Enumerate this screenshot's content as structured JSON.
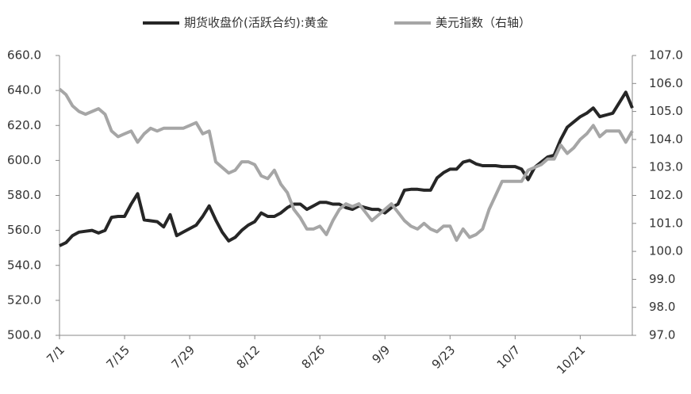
{
  "chart_data": {
    "type": "line",
    "categories": [
      "7/1",
      null,
      null,
      null,
      null,
      null,
      null,
      null,
      null,
      null,
      "7/15",
      null,
      null,
      null,
      null,
      null,
      null,
      null,
      null,
      null,
      "7/29",
      null,
      null,
      null,
      null,
      null,
      null,
      null,
      null,
      null,
      "8/12",
      null,
      null,
      null,
      null,
      null,
      null,
      null,
      null,
      null,
      "8/26",
      null,
      null,
      null,
      null,
      null,
      null,
      null,
      null,
      null,
      "9/9",
      null,
      null,
      null,
      null,
      null,
      null,
      null,
      null,
      null,
      "9/23",
      null,
      null,
      null,
      null,
      null,
      null,
      null,
      null,
      null,
      "10/7",
      null,
      null,
      null,
      null,
      null,
      null,
      null,
      null,
      null,
      "10/21",
      null,
      null,
      null,
      null,
      null,
      null,
      null,
      null
    ],
    "series": [
      {
        "name": "期货收盘价(活跃合约):黄金",
        "color": "#262626",
        "values": [
          551.2,
          553,
          557,
          559,
          559.5,
          560,
          558.5,
          560,
          567.5,
          568,
          568,
          575,
          581,
          566,
          565.5,
          565,
          562,
          569,
          557,
          559,
          561,
          563,
          568,
          574,
          566,
          559,
          554,
          556,
          560,
          563,
          565,
          570,
          568,
          568,
          570,
          573,
          575,
          575,
          572,
          574,
          576,
          576,
          575,
          575,
          573,
          572,
          574,
          573,
          572,
          572,
          570,
          573,
          575,
          583,
          583.5,
          583.5,
          583,
          583,
          590,
          593,
          595,
          595,
          599,
          600,
          598,
          597,
          597,
          597,
          596.5,
          596.5,
          596.5,
          595,
          589,
          596,
          599,
          602,
          603,
          612,
          619,
          622,
          625,
          627,
          630,
          625,
          626,
          627,
          633,
          639,
          630
        ]
      },
      {
        "name": "美元指数（右轴）",
        "color": "#a6a6a6",
        "axis": "y2",
        "values": [
          105.8,
          105.6,
          105.2,
          105.0,
          104.9,
          105.0,
          105.1,
          104.9,
          104.3,
          104.1,
          104.2,
          104.3,
          103.9,
          104.2,
          104.4,
          104.3,
          104.4,
          104.4,
          104.4,
          104.4,
          104.5,
          104.6,
          104.2,
          104.3,
          103.2,
          103.0,
          102.8,
          102.9,
          103.2,
          103.2,
          103.1,
          102.7,
          102.6,
          102.9,
          102.4,
          102.1,
          101.5,
          101.2,
          100.8,
          100.8,
          100.9,
          100.6,
          101.1,
          101.5,
          101.7,
          101.6,
          101.7,
          101.4,
          101.1,
          101.3,
          101.5,
          101.7,
          101.4,
          101.1,
          100.9,
          100.8,
          101.0,
          100.8,
          100.7,
          100.9,
          100.9,
          100.4,
          100.8,
          100.5,
          100.6,
          100.8,
          101.5,
          102.0,
          102.5,
          102.5,
          102.5,
          102.5,
          102.9,
          103.0,
          103.1,
          103.3,
          103.3,
          103.8,
          103.5,
          103.7,
          104.0,
          104.2,
          104.5,
          104.1,
          104.3,
          104.3,
          104.3,
          103.9,
          104.3
        ]
      }
    ],
    "ylim": [
      500,
      660
    ],
    "yticks": [
      {
        "value": 500,
        "label": "500.0"
      },
      {
        "value": 520,
        "label": "520.0"
      },
      {
        "value": 540,
        "label": "540.0"
      },
      {
        "value": 560,
        "label": "560.0"
      },
      {
        "value": 580,
        "label": "580.0"
      },
      {
        "value": 600,
        "label": "600.0"
      },
      {
        "value": 620,
        "label": "620.0"
      },
      {
        "value": 640,
        "label": "640.0"
      },
      {
        "value": 660,
        "label": "660.0"
      }
    ],
    "y2lim": [
      97,
      107
    ],
    "y2ticks": [
      {
        "value": 97,
        "label": "97.0"
      },
      {
        "value": 98,
        "label": "98.0"
      },
      {
        "value": 99,
        "label": "99.0"
      },
      {
        "value": 100,
        "label": "100.0"
      },
      {
        "value": 101,
        "label": "101.0"
      },
      {
        "value": 102,
        "label": "102.0"
      },
      {
        "value": 103,
        "label": "103.0"
      },
      {
        "value": 104,
        "label": "104.0"
      },
      {
        "value": 105,
        "label": "105.0"
      },
      {
        "value": 106,
        "label": "106.0"
      },
      {
        "value": 107,
        "label": "107.0"
      }
    ],
    "grid": false,
    "legend": "top"
  }
}
